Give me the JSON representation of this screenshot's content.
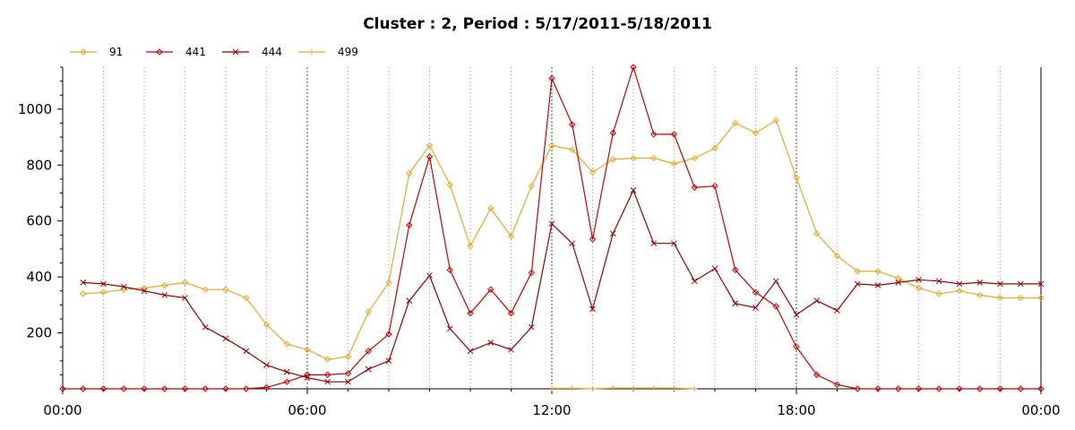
{
  "chart_data": {
    "type": "line",
    "title": "Cluster : 2, Period : 5/17/2011-5/18/2011",
    "xlabel": "",
    "ylabel": "",
    "x_unit": "hours",
    "xlim": [
      0,
      24
    ],
    "ylim": [
      0,
      1150
    ],
    "x_tick_labels": [
      "00:00",
      "06:00",
      "12:00",
      "18:00",
      "00:00"
    ],
    "x_tick_values": [
      0,
      6,
      12,
      18,
      24
    ],
    "y_tick_labels": [
      "200",
      "400",
      "600",
      "800",
      "1000"
    ],
    "y_tick_values": [
      200,
      400,
      600,
      800,
      1000
    ],
    "grid": true,
    "legend_position": "top-left",
    "x": [
      0,
      0.5,
      1,
      1.5,
      2,
      2.5,
      3,
      3.5,
      4,
      4.5,
      5,
      5.5,
      6,
      6.5,
      7,
      7.5,
      8,
      8.5,
      9,
      9.5,
      10,
      10.5,
      11,
      11.5,
      12,
      12.5,
      13,
      13.5,
      14,
      14.5,
      15,
      15.5,
      16,
      16.5,
      17,
      17.5,
      18,
      18.5,
      19,
      19.5,
      20,
      20.5,
      21,
      21.5,
      22,
      22.5,
      23,
      23.5,
      24
    ],
    "series": [
      {
        "name": "91",
        "color": "#e6a92b",
        "marker": "diamond",
        "values": [
          null,
          340,
          345,
          355,
          360,
          370,
          380,
          355,
          355,
          325,
          230,
          160,
          140,
          105,
          115,
          275,
          380,
          770,
          870,
          730,
          510,
          645,
          545,
          725,
          870,
          855,
          775,
          820,
          825,
          825,
          805,
          825,
          860,
          950,
          915,
          960,
          755,
          555,
          475,
          420,
          420,
          395,
          360,
          340,
          350,
          335,
          325,
          325,
          325
        ]
      },
      {
        "name": "441",
        "color": "#cc0000",
        "marker": "diamond",
        "values": [
          0,
          0,
          0,
          0,
          0,
          0,
          0,
          0,
          0,
          0,
          5,
          25,
          50,
          50,
          55,
          135,
          195,
          585,
          830,
          425,
          270,
          355,
          270,
          415,
          1110,
          945,
          535,
          915,
          1150,
          910,
          910,
          720,
          725,
          425,
          345,
          295,
          150,
          50,
          15,
          0,
          0,
          0,
          0,
          0,
          0,
          0,
          0,
          0,
          0
        ]
      },
      {
        "name": "444",
        "color": "#990000",
        "marker": "x",
        "values": [
          null,
          380,
          375,
          365,
          350,
          335,
          325,
          220,
          180,
          135,
          85,
          60,
          40,
          25,
          25,
          70,
          100,
          315,
          405,
          215,
          135,
          165,
          140,
          220,
          590,
          520,
          285,
          555,
          710,
          520,
          520,
          385,
          430,
          305,
          290,
          385,
          265,
          315,
          280,
          375,
          370,
          380,
          390,
          385,
          375,
          380,
          375,
          375,
          375
        ]
      },
      {
        "name": "499",
        "color": "#e6a92b",
        "marker": "plus",
        "values": [
          null,
          null,
          null,
          null,
          null,
          null,
          null,
          null,
          null,
          null,
          null,
          null,
          null,
          null,
          null,
          null,
          null,
          null,
          null,
          null,
          null,
          null,
          null,
          null,
          2,
          2,
          0,
          3,
          3,
          3,
          3,
          0,
          null,
          null,
          null,
          null,
          null,
          null,
          null,
          null,
          null,
          null,
          null,
          null,
          null,
          null,
          null,
          null,
          null
        ]
      }
    ]
  }
}
